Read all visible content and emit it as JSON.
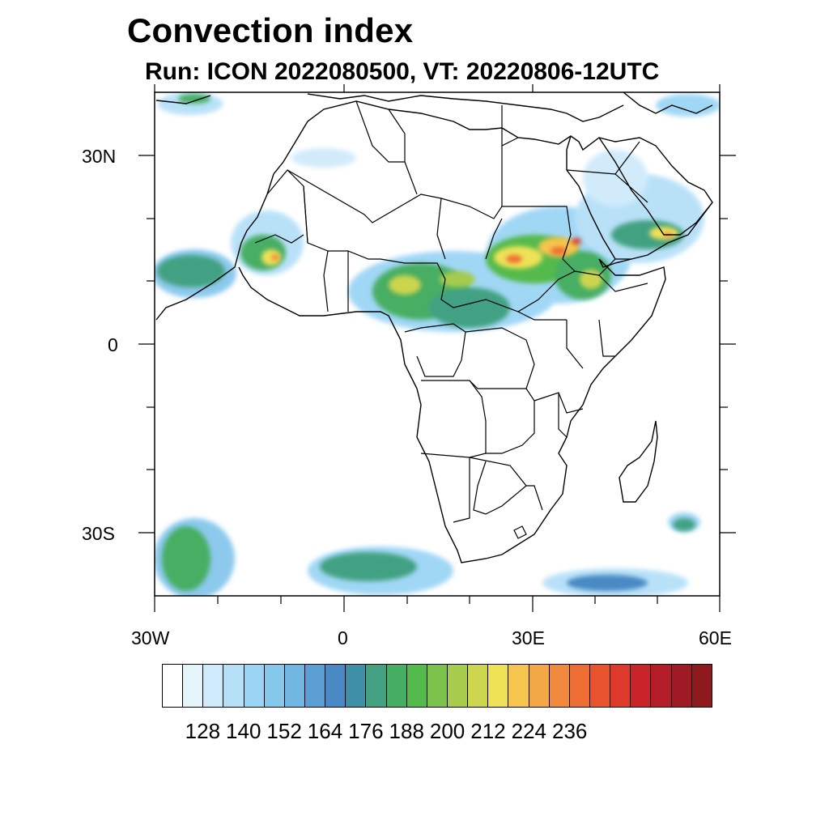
{
  "title": "Convection index",
  "subtitle": "Run: ICON 2022080500,  VT: 20220806-12UTC",
  "axes": {
    "lon_labels": [
      "30W",
      "0",
      "30E",
      "60E"
    ],
    "lat_labels": [
      "30N",
      "0",
      "30S"
    ]
  },
  "colorbar": {
    "colors": [
      "#ffffff",
      "#e6f4fc",
      "#cfeafa",
      "#b5e0f8",
      "#9bd5f5",
      "#86c7ec",
      "#72b7e2",
      "#5b9fd4",
      "#4a89c4",
      "#3f8fa6",
      "#43a182",
      "#46ae63",
      "#55ba4c",
      "#7cc24c",
      "#a6cb4d",
      "#cdd54e",
      "#efe257",
      "#f6c54e",
      "#f3a848",
      "#f18a3e",
      "#ee6d34",
      "#e8532d",
      "#dd3a2b",
      "#c8242a",
      "#b41d28",
      "#9f1a24",
      "#8e1a1e"
    ],
    "labels": [
      "128",
      "140",
      "152",
      "164",
      "176",
      "188",
      "200",
      "212",
      "224",
      "236"
    ]
  }
}
